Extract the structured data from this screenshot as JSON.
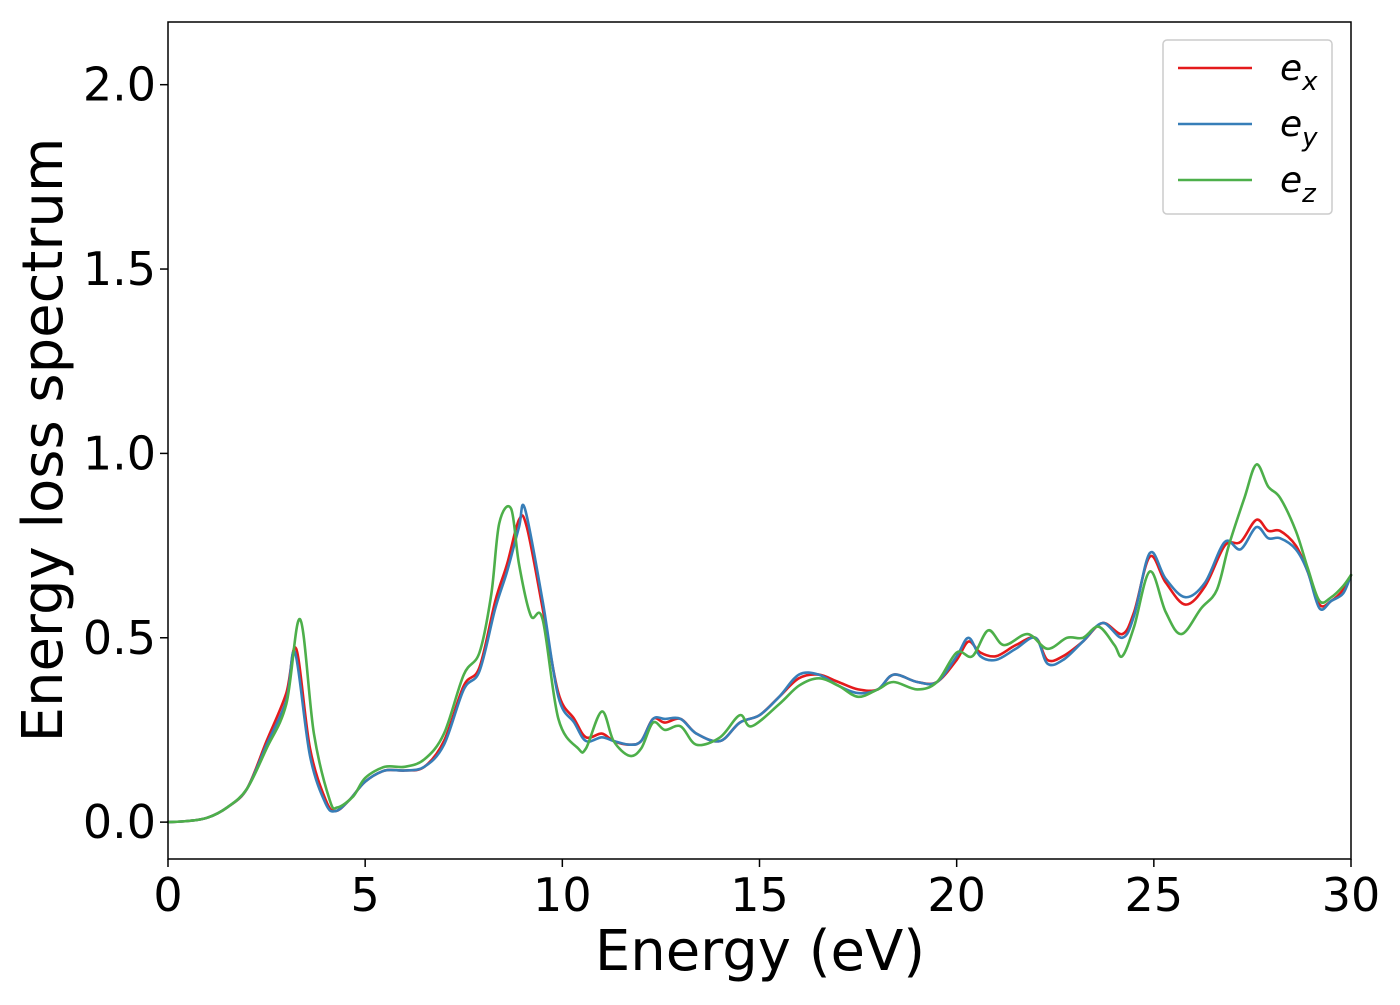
{
  "chart_data": {
    "type": "line",
    "title": "",
    "xlabel": "Energy (eV)",
    "ylabel": "Energy loss spectrum",
    "xlim": [
      0,
      30
    ],
    "ylim": [
      -0.1,
      2.17
    ],
    "x_ticks": [
      "0",
      "5",
      "10",
      "15",
      "20",
      "25",
      "30"
    ],
    "y_ticks": [
      "0.0",
      "0.5",
      "1.0",
      "1.5",
      "2.0"
    ],
    "grid": false,
    "legend_position": "top-right",
    "series": [
      {
        "name": "e_x",
        "legend_base": "e",
        "legend_sub": "x",
        "color": "#e41a1c",
        "points": [
          [
            0,
            0
          ],
          [
            0.5,
            0.003
          ],
          [
            1,
            0.012
          ],
          [
            1.5,
            0.04
          ],
          [
            2,
            0.09
          ],
          [
            2.5,
            0.22
          ],
          [
            3.0,
            0.35
          ],
          [
            3.25,
            0.47
          ],
          [
            3.6,
            0.2
          ],
          [
            4.0,
            0.06
          ],
          [
            4.25,
            0.03
          ],
          [
            4.6,
            0.06
          ],
          [
            5,
            0.11
          ],
          [
            5.5,
            0.14
          ],
          [
            6,
            0.14
          ],
          [
            6.5,
            0.15
          ],
          [
            7,
            0.22
          ],
          [
            7.5,
            0.37
          ],
          [
            7.9,
            0.42
          ],
          [
            8.3,
            0.6
          ],
          [
            8.6,
            0.7
          ],
          [
            8.9,
            0.82
          ],
          [
            9.1,
            0.8
          ],
          [
            9.5,
            0.58
          ],
          [
            9.9,
            0.35
          ],
          [
            10.3,
            0.28
          ],
          [
            10.6,
            0.23
          ],
          [
            11,
            0.24
          ],
          [
            11.3,
            0.22
          ],
          [
            11.7,
            0.21
          ],
          [
            12.0,
            0.22
          ],
          [
            12.3,
            0.28
          ],
          [
            12.6,
            0.27
          ],
          [
            13,
            0.28
          ],
          [
            13.4,
            0.24
          ],
          [
            14,
            0.22
          ],
          [
            14.5,
            0.27
          ],
          [
            15,
            0.29
          ],
          [
            15.5,
            0.34
          ],
          [
            16,
            0.39
          ],
          [
            16.5,
            0.4
          ],
          [
            17,
            0.38
          ],
          [
            17.5,
            0.36
          ],
          [
            18,
            0.36
          ],
          [
            18.4,
            0.4
          ],
          [
            19,
            0.38
          ],
          [
            19.5,
            0.38
          ],
          [
            20,
            0.44
          ],
          [
            20.3,
            0.49
          ],
          [
            20.6,
            0.46
          ],
          [
            21,
            0.45
          ],
          [
            21.5,
            0.48
          ],
          [
            22,
            0.5
          ],
          [
            22.3,
            0.44
          ],
          [
            22.7,
            0.45
          ],
          [
            23.2,
            0.49
          ],
          [
            23.7,
            0.54
          ],
          [
            24.2,
            0.51
          ],
          [
            24.5,
            0.57
          ],
          [
            24.9,
            0.72
          ],
          [
            25.3,
            0.65
          ],
          [
            25.8,
            0.59
          ],
          [
            26.3,
            0.64
          ],
          [
            26.8,
            0.75
          ],
          [
            27.2,
            0.76
          ],
          [
            27.6,
            0.82
          ],
          [
            27.9,
            0.79
          ],
          [
            28.2,
            0.79
          ],
          [
            28.6,
            0.75
          ],
          [
            28.9,
            0.68
          ],
          [
            29.2,
            0.59
          ],
          [
            29.5,
            0.6
          ],
          [
            29.8,
            0.63
          ],
          [
            30,
            0.67
          ]
        ]
      },
      {
        "name": "e_y",
        "legend_base": "e",
        "legend_sub": "y",
        "color": "#377eb8",
        "points": [
          [
            0,
            0
          ],
          [
            0.5,
            0.003
          ],
          [
            1,
            0.012
          ],
          [
            1.5,
            0.04
          ],
          [
            2,
            0.09
          ],
          [
            2.5,
            0.21
          ],
          [
            3.0,
            0.33
          ],
          [
            3.22,
            0.46
          ],
          [
            3.6,
            0.18
          ],
          [
            4.0,
            0.05
          ],
          [
            4.25,
            0.03
          ],
          [
            4.6,
            0.06
          ],
          [
            5,
            0.11
          ],
          [
            5.5,
            0.14
          ],
          [
            6,
            0.14
          ],
          [
            6.5,
            0.15
          ],
          [
            7,
            0.21
          ],
          [
            7.5,
            0.36
          ],
          [
            7.9,
            0.41
          ],
          [
            8.3,
            0.58
          ],
          [
            8.6,
            0.68
          ],
          [
            8.9,
            0.8
          ],
          [
            9.05,
            0.85
          ],
          [
            9.5,
            0.6
          ],
          [
            9.9,
            0.34
          ],
          [
            10.3,
            0.27
          ],
          [
            10.6,
            0.22
          ],
          [
            11,
            0.23
          ],
          [
            11.3,
            0.22
          ],
          [
            11.7,
            0.21
          ],
          [
            12.0,
            0.22
          ],
          [
            12.3,
            0.28
          ],
          [
            12.6,
            0.28
          ],
          [
            13,
            0.28
          ],
          [
            13.4,
            0.24
          ],
          [
            14,
            0.22
          ],
          [
            14.5,
            0.27
          ],
          [
            15,
            0.29
          ],
          [
            15.5,
            0.34
          ],
          [
            16,
            0.4
          ],
          [
            16.5,
            0.4
          ],
          [
            17,
            0.37
          ],
          [
            17.5,
            0.35
          ],
          [
            18,
            0.36
          ],
          [
            18.4,
            0.4
          ],
          [
            19,
            0.38
          ],
          [
            19.5,
            0.38
          ],
          [
            20,
            0.45
          ],
          [
            20.3,
            0.5
          ],
          [
            20.6,
            0.45
          ],
          [
            21,
            0.44
          ],
          [
            21.5,
            0.47
          ],
          [
            22,
            0.5
          ],
          [
            22.3,
            0.43
          ],
          [
            22.7,
            0.44
          ],
          [
            23.2,
            0.49
          ],
          [
            23.7,
            0.54
          ],
          [
            24.2,
            0.5
          ],
          [
            24.5,
            0.56
          ],
          [
            24.9,
            0.73
          ],
          [
            25.3,
            0.66
          ],
          [
            25.8,
            0.61
          ],
          [
            26.3,
            0.65
          ],
          [
            26.8,
            0.76
          ],
          [
            27.2,
            0.74
          ],
          [
            27.6,
            0.8
          ],
          [
            27.9,
            0.77
          ],
          [
            28.2,
            0.77
          ],
          [
            28.6,
            0.74
          ],
          [
            28.9,
            0.68
          ],
          [
            29.2,
            0.58
          ],
          [
            29.5,
            0.6
          ],
          [
            29.8,
            0.62
          ],
          [
            30,
            0.67
          ]
        ]
      },
      {
        "name": "e_z",
        "legend_base": "e",
        "legend_sub": "z",
        "color": "#4daf4a",
        "points": [
          [
            0,
            0
          ],
          [
            0.5,
            0.003
          ],
          [
            1,
            0.012
          ],
          [
            1.5,
            0.04
          ],
          [
            2,
            0.09
          ],
          [
            2.5,
            0.2
          ],
          [
            3.0,
            0.32
          ],
          [
            3.35,
            0.55
          ],
          [
            3.7,
            0.24
          ],
          [
            4.1,
            0.06
          ],
          [
            4.3,
            0.04
          ],
          [
            4.7,
            0.07
          ],
          [
            5,
            0.12
          ],
          [
            5.5,
            0.15
          ],
          [
            6,
            0.15
          ],
          [
            6.5,
            0.17
          ],
          [
            7,
            0.24
          ],
          [
            7.5,
            0.4
          ],
          [
            7.9,
            0.46
          ],
          [
            8.2,
            0.62
          ],
          [
            8.4,
            0.81
          ],
          [
            8.7,
            0.85
          ],
          [
            8.9,
            0.7
          ],
          [
            9.2,
            0.56
          ],
          [
            9.5,
            0.55
          ],
          [
            9.9,
            0.28
          ],
          [
            10.4,
            0.2
          ],
          [
            10.6,
            0.2
          ],
          [
            11,
            0.3
          ],
          [
            11.3,
            0.22
          ],
          [
            11.7,
            0.18
          ],
          [
            12.0,
            0.2
          ],
          [
            12.3,
            0.27
          ],
          [
            12.6,
            0.25
          ],
          [
            13,
            0.26
          ],
          [
            13.4,
            0.21
          ],
          [
            14,
            0.23
          ],
          [
            14.5,
            0.29
          ],
          [
            14.8,
            0.26
          ],
          [
            15.5,
            0.32
          ],
          [
            16,
            0.37
          ],
          [
            16.5,
            0.39
          ],
          [
            17,
            0.37
          ],
          [
            17.5,
            0.34
          ],
          [
            18,
            0.36
          ],
          [
            18.4,
            0.38
          ],
          [
            19,
            0.36
          ],
          [
            19.5,
            0.38
          ],
          [
            20,
            0.46
          ],
          [
            20.4,
            0.45
          ],
          [
            20.8,
            0.52
          ],
          [
            21.2,
            0.48
          ],
          [
            21.8,
            0.51
          ],
          [
            22.3,
            0.47
          ],
          [
            22.8,
            0.5
          ],
          [
            23.2,
            0.5
          ],
          [
            23.6,
            0.53
          ],
          [
            24.0,
            0.48
          ],
          [
            24.2,
            0.45
          ],
          [
            24.5,
            0.53
          ],
          [
            24.9,
            0.68
          ],
          [
            25.3,
            0.57
          ],
          [
            25.7,
            0.51
          ],
          [
            26.2,
            0.58
          ],
          [
            26.6,
            0.63
          ],
          [
            26.9,
            0.75
          ],
          [
            27.3,
            0.88
          ],
          [
            27.6,
            0.97
          ],
          [
            27.9,
            0.91
          ],
          [
            28.2,
            0.88
          ],
          [
            28.6,
            0.79
          ],
          [
            28.9,
            0.69
          ],
          [
            29.2,
            0.6
          ],
          [
            29.5,
            0.61
          ],
          [
            29.8,
            0.64
          ],
          [
            30,
            0.67
          ]
        ]
      }
    ]
  }
}
